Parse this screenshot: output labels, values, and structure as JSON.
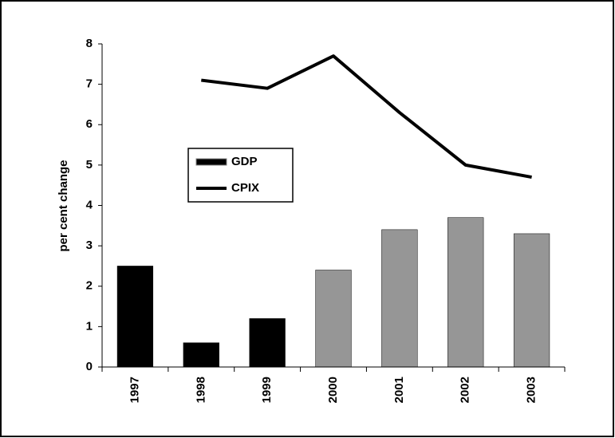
{
  "chart_data": {
    "type": "bar",
    "y_label": "per cent change",
    "categories": [
      "1997",
      "1998",
      "1999",
      "2000",
      "2001",
      "2002",
      "2003"
    ],
    "series": [
      {
        "name": "GDP",
        "type": "bar",
        "color": "#000000",
        "colors": [
          "#000000",
          "#000000",
          "#000000",
          "#969696",
          "#969696",
          "#969696",
          "#969696"
        ],
        "values": [
          2.5,
          0.6,
          1.2,
          2.4,
          3.4,
          3.7,
          3.3
        ]
      },
      {
        "name": "CPIX",
        "type": "line",
        "color": "#000000",
        "values": [
          null,
          7.1,
          6.9,
          7.7,
          6.3,
          5.0,
          4.7
        ]
      }
    ],
    "ylim": [
      0,
      8
    ],
    "yticks": [
      0,
      1,
      2,
      3,
      4,
      5,
      6,
      7,
      8
    ],
    "grid": false
  }
}
